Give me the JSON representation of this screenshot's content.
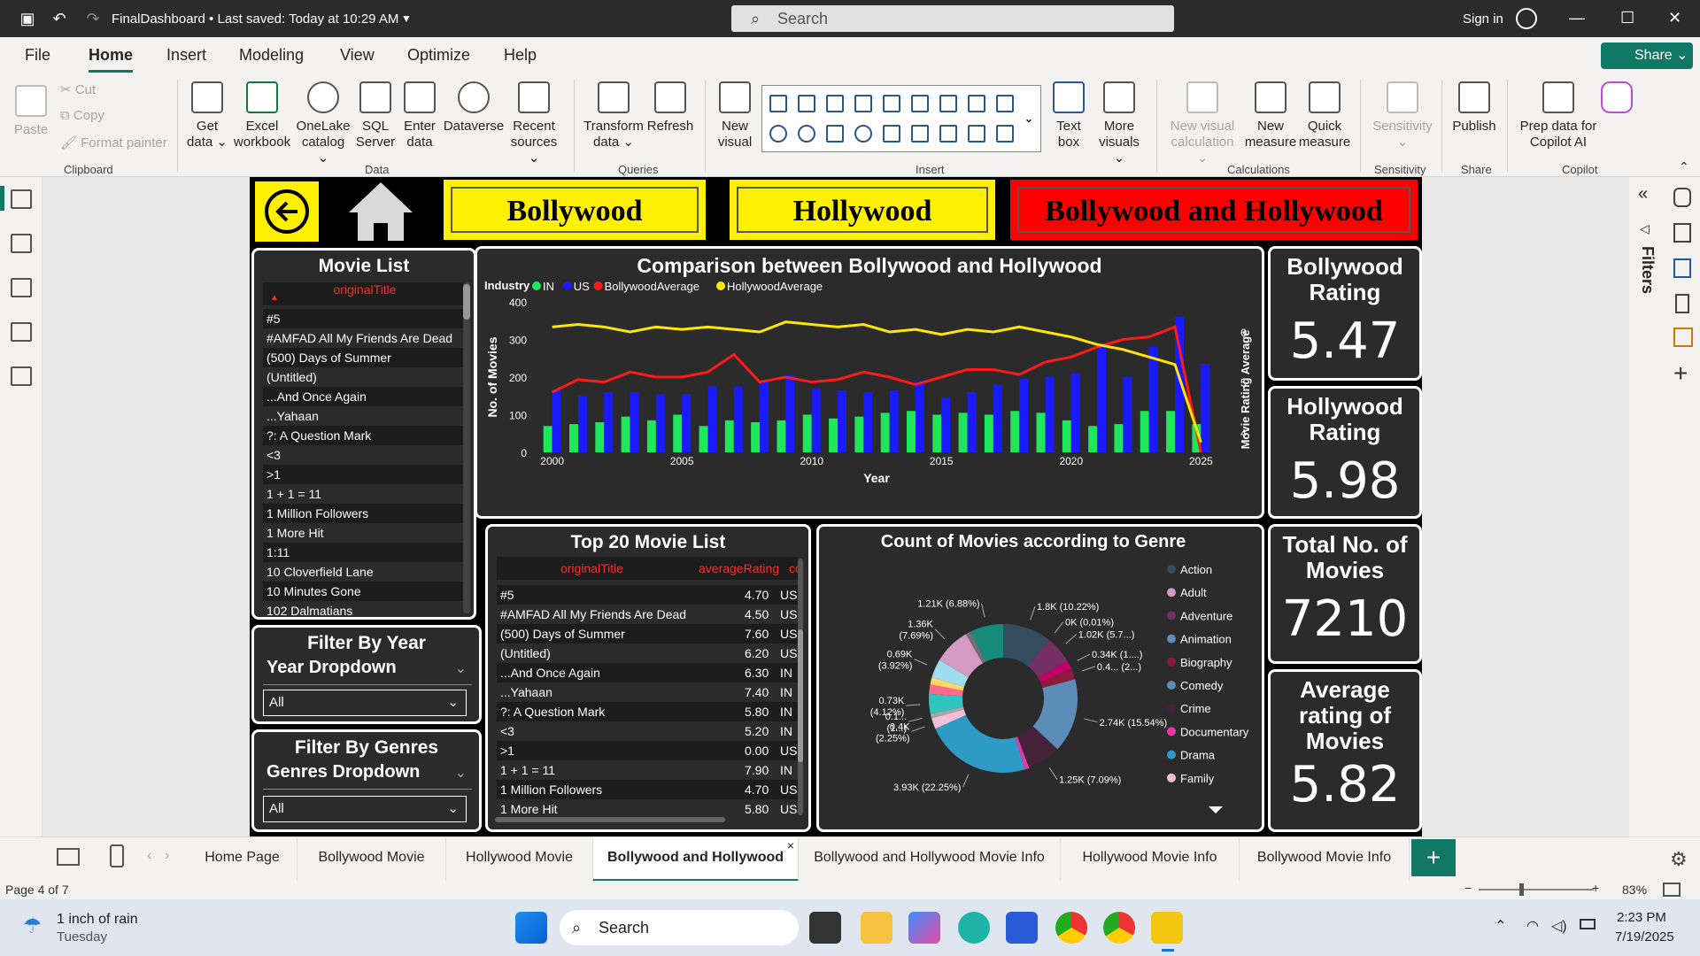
{
  "titlebar": {
    "title": "FinalDashboard • Last saved: Today at 10:29 AM",
    "search": "Search",
    "signin": "Sign in"
  },
  "menu": {
    "file": "File",
    "home": "Home",
    "insert": "Insert",
    "modeling": "Modeling",
    "view": "View",
    "optimize": "Optimize",
    "help": "Help",
    "share": "Share"
  },
  "ribbon": {
    "paste": "Paste",
    "cut": "Cut",
    "copy": "Copy",
    "format_painter": "Format painter",
    "clipboard": "Clipboard",
    "get_data": "Get data",
    "excel": "Excel workbook",
    "onelake": "OneLake catalog",
    "sql": "SQL Server",
    "enter_data": "Enter data",
    "dataverse": "Dataverse",
    "recent": "Recent sources",
    "data_group": "Data",
    "transform": "Transform data",
    "refresh": "Refresh",
    "queries": "Queries",
    "new_visual": "New visual",
    "text_box": "Text box",
    "more_visuals": "More visuals",
    "insert_group": "Insert",
    "new_visual_calc": "New visual calculation",
    "new_measure": "New measure",
    "quick_measure": "Quick measure",
    "calculations": "Calculations",
    "sensitivity": "Sensitivity",
    "sensitivity_group": "Sensitivity",
    "publish": "Publish",
    "share_group": "Share",
    "prep_copilot": "Prep data for Copilot AI",
    "copilot_group": "Copilot"
  },
  "report": {
    "nav": {
      "bollywood": "Bollywood",
      "hollywood": "Hollywood",
      "both": "Bollywood and Hollywood"
    },
    "movie_list": {
      "title": "Movie List",
      "column": "originalTitle",
      "items": [
        "#5",
        "#AMFAD All My Friends Are Dead",
        "(500) Days of Summer",
        "(Untitled)",
        "...And Once Again",
        "...Yahaan",
        "?: A Question Mark",
        "<3",
        ">1",
        "1 + 1 = 11",
        "1 Million Followers",
        "1 More Hit",
        "1:11",
        "10 Cloverfield Lane",
        "10 Minutes Gone",
        "102 Dalmatians"
      ]
    },
    "filter_year": {
      "title": "Filter By Year",
      "label": "Year Dropdown",
      "value": "All"
    },
    "filter_genre": {
      "title": "Filter By Genres",
      "label": "Genres Dropdown",
      "value": "All"
    },
    "top20": {
      "title": "Top 20 Movie List",
      "col1": "originalTitle",
      "col2": "averageRating",
      "col3": "co",
      "rows": [
        [
          "#5",
          "4.70",
          "US"
        ],
        [
          "#AMFAD All My Friends Are Dead",
          "4.50",
          "US"
        ],
        [
          "(500) Days of Summer",
          "7.60",
          "US"
        ],
        [
          "(Untitled)",
          "6.20",
          "US"
        ],
        [
          "...And Once Again",
          "6.30",
          "IN"
        ],
        [
          "...Yahaan",
          "7.40",
          "IN"
        ],
        [
          "?: A Question Mark",
          "5.80",
          "IN"
        ],
        [
          "<3",
          "5.20",
          "IN"
        ],
        [
          ">1",
          "0.00",
          "US"
        ],
        [
          "1 + 1 = 11",
          "7.90",
          "IN"
        ],
        [
          "1 Million Followers",
          "4.70",
          "US"
        ],
        [
          "1 More Hit",
          "5.80",
          "US"
        ]
      ]
    },
    "kpis": [
      {
        "title": "Bollywood Rating",
        "value": "5.47"
      },
      {
        "title": "Hollywood Rating",
        "value": "5.98"
      },
      {
        "title": "Total No. of Movies",
        "value": "7210"
      },
      {
        "title": "Average rating of Movies",
        "value": "5.82"
      }
    ]
  },
  "chart_data": [
    {
      "type": "bar",
      "title": "Comparison between Bollywood and Hollywood",
      "legend_title": "Industry",
      "legend": [
        "IN",
        "US",
        "BollywoodAverage",
        "HollywoodAverage"
      ],
      "xlabel": "Year",
      "ylabel": "No. of Movies",
      "y2label": "Movie Rating Average",
      "ylim": [
        0,
        400
      ],
      "y2lim": [
        3.6,
        6.6
      ],
      "yticks": [
        "0",
        "100",
        "200",
        "300",
        "400"
      ],
      "y2ticks": [
        "4",
        "5",
        "6"
      ],
      "xticks": [
        "2000",
        "2005",
        "2010",
        "2015",
        "2020",
        "2025"
      ],
      "x": [
        2000,
        2001,
        2002,
        2003,
        2004,
        2005,
        2006,
        2007,
        2008,
        2009,
        2010,
        2011,
        2012,
        2013,
        2014,
        2015,
        2016,
        2017,
        2018,
        2019,
        2020,
        2021,
        2022,
        2023,
        2024,
        2025
      ],
      "series": [
        {
          "name": "IN",
          "kind": "bar",
          "color": "#1ee85a",
          "values": [
            70,
            75,
            80,
            95,
            85,
            100,
            70,
            85,
            80,
            85,
            100,
            90,
            95,
            105,
            110,
            100,
            105,
            100,
            110,
            105,
            85,
            70,
            75,
            110,
            110,
            75
          ]
        },
        {
          "name": "US",
          "kind": "bar",
          "color": "#1a1aff",
          "values": [
            165,
            150,
            160,
            160,
            155,
            155,
            175,
            175,
            190,
            205,
            170,
            165,
            160,
            165,
            190,
            145,
            160,
            180,
            195,
            200,
            210,
            280,
            200,
            280,
            360,
            235
          ]
        },
        {
          "name": "BollywoodAverage",
          "kind": "line",
          "axis": "y2",
          "color": "#ff1a1a",
          "values": [
            4.8,
            5.05,
            5.0,
            5.2,
            5.1,
            5.1,
            5.2,
            5.55,
            5.0,
            5.1,
            5.0,
            5.05,
            5.2,
            5.1,
            4.95,
            5.1,
            5.25,
            5.25,
            5.15,
            5.4,
            5.5,
            5.7,
            5.85,
            5.9,
            6.1,
            3.6
          ]
        },
        {
          "name": "HollywoodAverage",
          "kind": "line",
          "axis": "y2",
          "color": "#ffe600",
          "values": [
            6.1,
            6.15,
            6.1,
            6.0,
            6.1,
            6.05,
            6.1,
            6.05,
            6.0,
            6.2,
            6.15,
            6.1,
            6.15,
            6.0,
            6.05,
            5.95,
            6.05,
            6.0,
            6.1,
            6.0,
            5.9,
            5.75,
            5.65,
            5.5,
            5.35,
            3.8
          ]
        }
      ]
    },
    {
      "type": "pie",
      "title": "Count of Movies according to Genre",
      "legend": [
        "Action",
        "Adult",
        "Adventure",
        "Animation",
        "Biography",
        "Comedy",
        "Crime",
        "Documentary",
        "Drama",
        "Family"
      ],
      "slices": [
        {
          "label": "1.8K (10.22%)",
          "value": 10.22,
          "color": "#374c5f"
        },
        {
          "label": "0K (0.01%)",
          "value": 0.01,
          "color": "#a676b0"
        },
        {
          "label": "1.02K (5.7...)",
          "value": 5.7,
          "color": "#743064"
        },
        {
          "label": "0.34K (1....)",
          "value": 1.9,
          "color": "#c0006a"
        },
        {
          "label": "0.4... (2...)",
          "value": 2.3,
          "color": "#8a1c3a"
        },
        {
          "label": "2.74K (15.54%)",
          "value": 15.54,
          "color": "#5c8cb8"
        },
        {
          "label": "1.25K (7.09%)",
          "value": 7.09,
          "color": "#45213a"
        },
        {
          "label": "",
          "value": 0.9,
          "color": "#e838a8"
        },
        {
          "label": "3.93K (22.25%)",
          "value": 22.25,
          "color": "#2e9ac6"
        },
        {
          "label": "0.4K (2.25%)",
          "value": 2.25,
          "color": "#f0c0d8"
        },
        {
          "label": "0.1... (1...)",
          "value": 1.0,
          "color": "#aaa4a8"
        },
        {
          "label": "0.73K (4.12%)",
          "value": 4.12,
          "color": "#30c4c0"
        },
        {
          "label": "",
          "value": 2.0,
          "color": "#ff6a8c"
        },
        {
          "label": "",
          "value": 1.5,
          "color": "#ffd66a"
        },
        {
          "label": "0.69K (3.92%)",
          "value": 3.92,
          "color": "#a0dcf0"
        },
        {
          "label": "1.36K (7.69%)",
          "value": 7.69,
          "color": "#d49ac4"
        },
        {
          "label": "",
          "value": 1.2,
          "color": "#707070"
        },
        {
          "label": "1.21K (6.88%)",
          "value": 6.88,
          "color": "#178a7a"
        }
      ]
    }
  ],
  "tabs": {
    "t1": "Home Page",
    "t2": "Bollywood Movie",
    "t3": "Hollywood Movie",
    "t4": "Bollywood and Hollywood",
    "t5": "Bollywood and Hollywood Movie Info",
    "t6": "Hollywood Movie Info",
    "t7": "Bollywood Movie Info"
  },
  "status": {
    "page": "Page 4 of 7",
    "zoom": "83%"
  },
  "taskbar": {
    "weather": "1 inch of rain",
    "day": "Tuesday",
    "search": "Search",
    "time": "2:23 PM",
    "date": "7/19/2025"
  }
}
